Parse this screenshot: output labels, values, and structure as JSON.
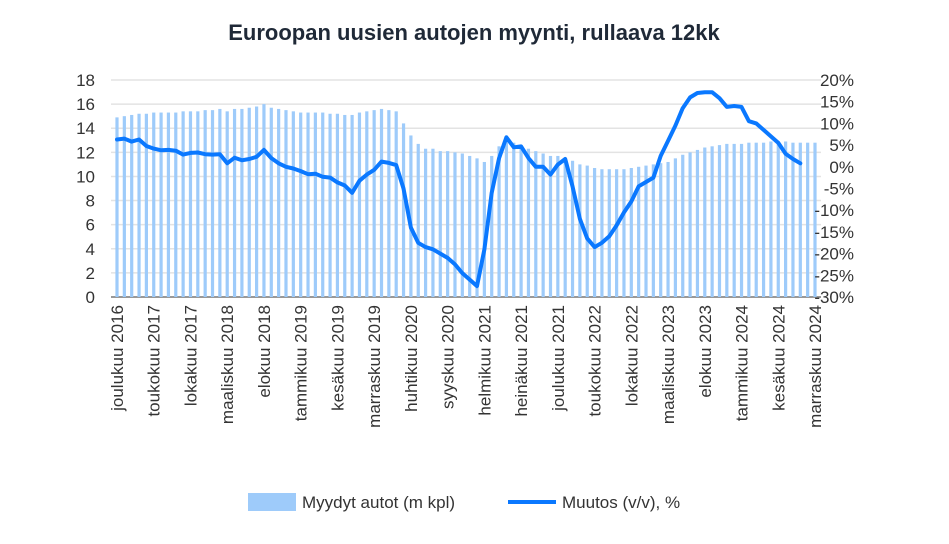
{
  "chart_data": {
    "type": "bar+line",
    "title": "Euroopan uusien autojen myynti, rullaava 12kk",
    "left_axis": {
      "ylim": [
        0,
        18
      ],
      "ticks": [
        "0",
        "2",
        "4",
        "6",
        "8",
        "10",
        "12",
        "14",
        "16",
        "18"
      ]
    },
    "right_axis": {
      "ylim": [
        -30,
        20
      ],
      "ticks": [
        "-30%",
        "-25%",
        "-20%",
        "-15%",
        "-10%",
        "-5%",
        "0%",
        "5%",
        "10%",
        "15%",
        "20%"
      ]
    },
    "grid": true,
    "x_tick_labels": [
      "joulukuu 2016",
      "toukokuu 2017",
      "lokakuu 2017",
      "maaliskuu 2018",
      "elokuu 2018",
      "tammikuu 2019",
      "kesäkuu 2019",
      "marraskuu 2019",
      "huhtikuu 2020",
      "syyskuu 2020",
      "helmikuu 2021",
      "heinäkuu 2021",
      "joulukuu 2021",
      "toukokuu 2022",
      "lokakuu 2022",
      "maaliskuu 2023",
      "elokuu 2023",
      "tammikuu 2024",
      "kesäkuu 2024",
      "marraskuu 2024"
    ],
    "series": [
      {
        "name": "Myydyt autot (m kpl)",
        "type": "bar",
        "axis": "left",
        "color": "#9ecbfa",
        "values": [
          14.9,
          15.0,
          15.1,
          15.2,
          15.2,
          15.3,
          15.3,
          15.3,
          15.3,
          15.4,
          15.4,
          15.4,
          15.5,
          15.5,
          15.6,
          15.4,
          15.6,
          15.6,
          15.7,
          15.8,
          16.0,
          15.7,
          15.6,
          15.5,
          15.4,
          15.3,
          15.3,
          15.3,
          15.3,
          15.2,
          15.2,
          15.1,
          15.1,
          15.3,
          15.4,
          15.5,
          15.6,
          15.5,
          15.4,
          14.4,
          13.4,
          12.7,
          12.3,
          12.3,
          12.1,
          12.1,
          12.0,
          11.9,
          11.7,
          11.5,
          11.2,
          11.7,
          12.5,
          13.0,
          12.8,
          12.6,
          12.3,
          12.1,
          11.9,
          11.7,
          11.7,
          11.5,
          11.3,
          11.0,
          10.9,
          10.7,
          10.6,
          10.6,
          10.6,
          10.6,
          10.7,
          10.8,
          10.9,
          11.0,
          11.1,
          11.2,
          11.5,
          11.8,
          12.0,
          12.2,
          12.4,
          12.5,
          12.6,
          12.7,
          12.7,
          12.7,
          12.8,
          12.8,
          12.8,
          12.9,
          12.9,
          12.9,
          12.8,
          12.8,
          12.8,
          12.8
        ]
      },
      {
        "name": "Muutos (v/v), %",
        "type": "line",
        "axis": "right",
        "color": "#0a78ff",
        "values": [
          6.3,
          6.5,
          5.8,
          6.3,
          4.8,
          4.2,
          3.8,
          3.9,
          3.7,
          2.8,
          3.2,
          3.3,
          2.9,
          2.8,
          2.9,
          0.8,
          2.1,
          1.5,
          1.8,
          2.3,
          3.9,
          2.0,
          0.8,
          0.0,
          -0.4,
          -1.0,
          -1.7,
          -1.6,
          -2.3,
          -2.5,
          -3.6,
          -4.3,
          -6.0,
          -3.2,
          -1.8,
          -0.7,
          1.2,
          0.9,
          0.4,
          -5.0,
          -14.0,
          -17.5,
          -18.5,
          -19.0,
          -20.0,
          -21.0,
          -22.5,
          -24.5,
          -26.0,
          -27.5,
          -19.0,
          -6.0,
          2.0,
          6.8,
          4.5,
          4.7,
          2.0,
          0.0,
          0.0,
          -1.8,
          0.5,
          1.8,
          -4.5,
          -12.0,
          -16.5,
          -18.5,
          -17.5,
          -16.0,
          -13.5,
          -10.5,
          -8.0,
          -4.5,
          -3.5,
          -2.5,
          2.5,
          6.0,
          9.5,
          13.5,
          16.0,
          17.0,
          17.2,
          17.2,
          15.8,
          13.8,
          14.0,
          13.8,
          10.5,
          10.0,
          8.5,
          7.0,
          5.5,
          3.0,
          1.8,
          0.8,
          null
        ]
      }
    ],
    "legend": {
      "placement": "bottom",
      "entries": [
        "Myydyt autot (m kpl)",
        "Muutos (v/v), %"
      ]
    }
  }
}
